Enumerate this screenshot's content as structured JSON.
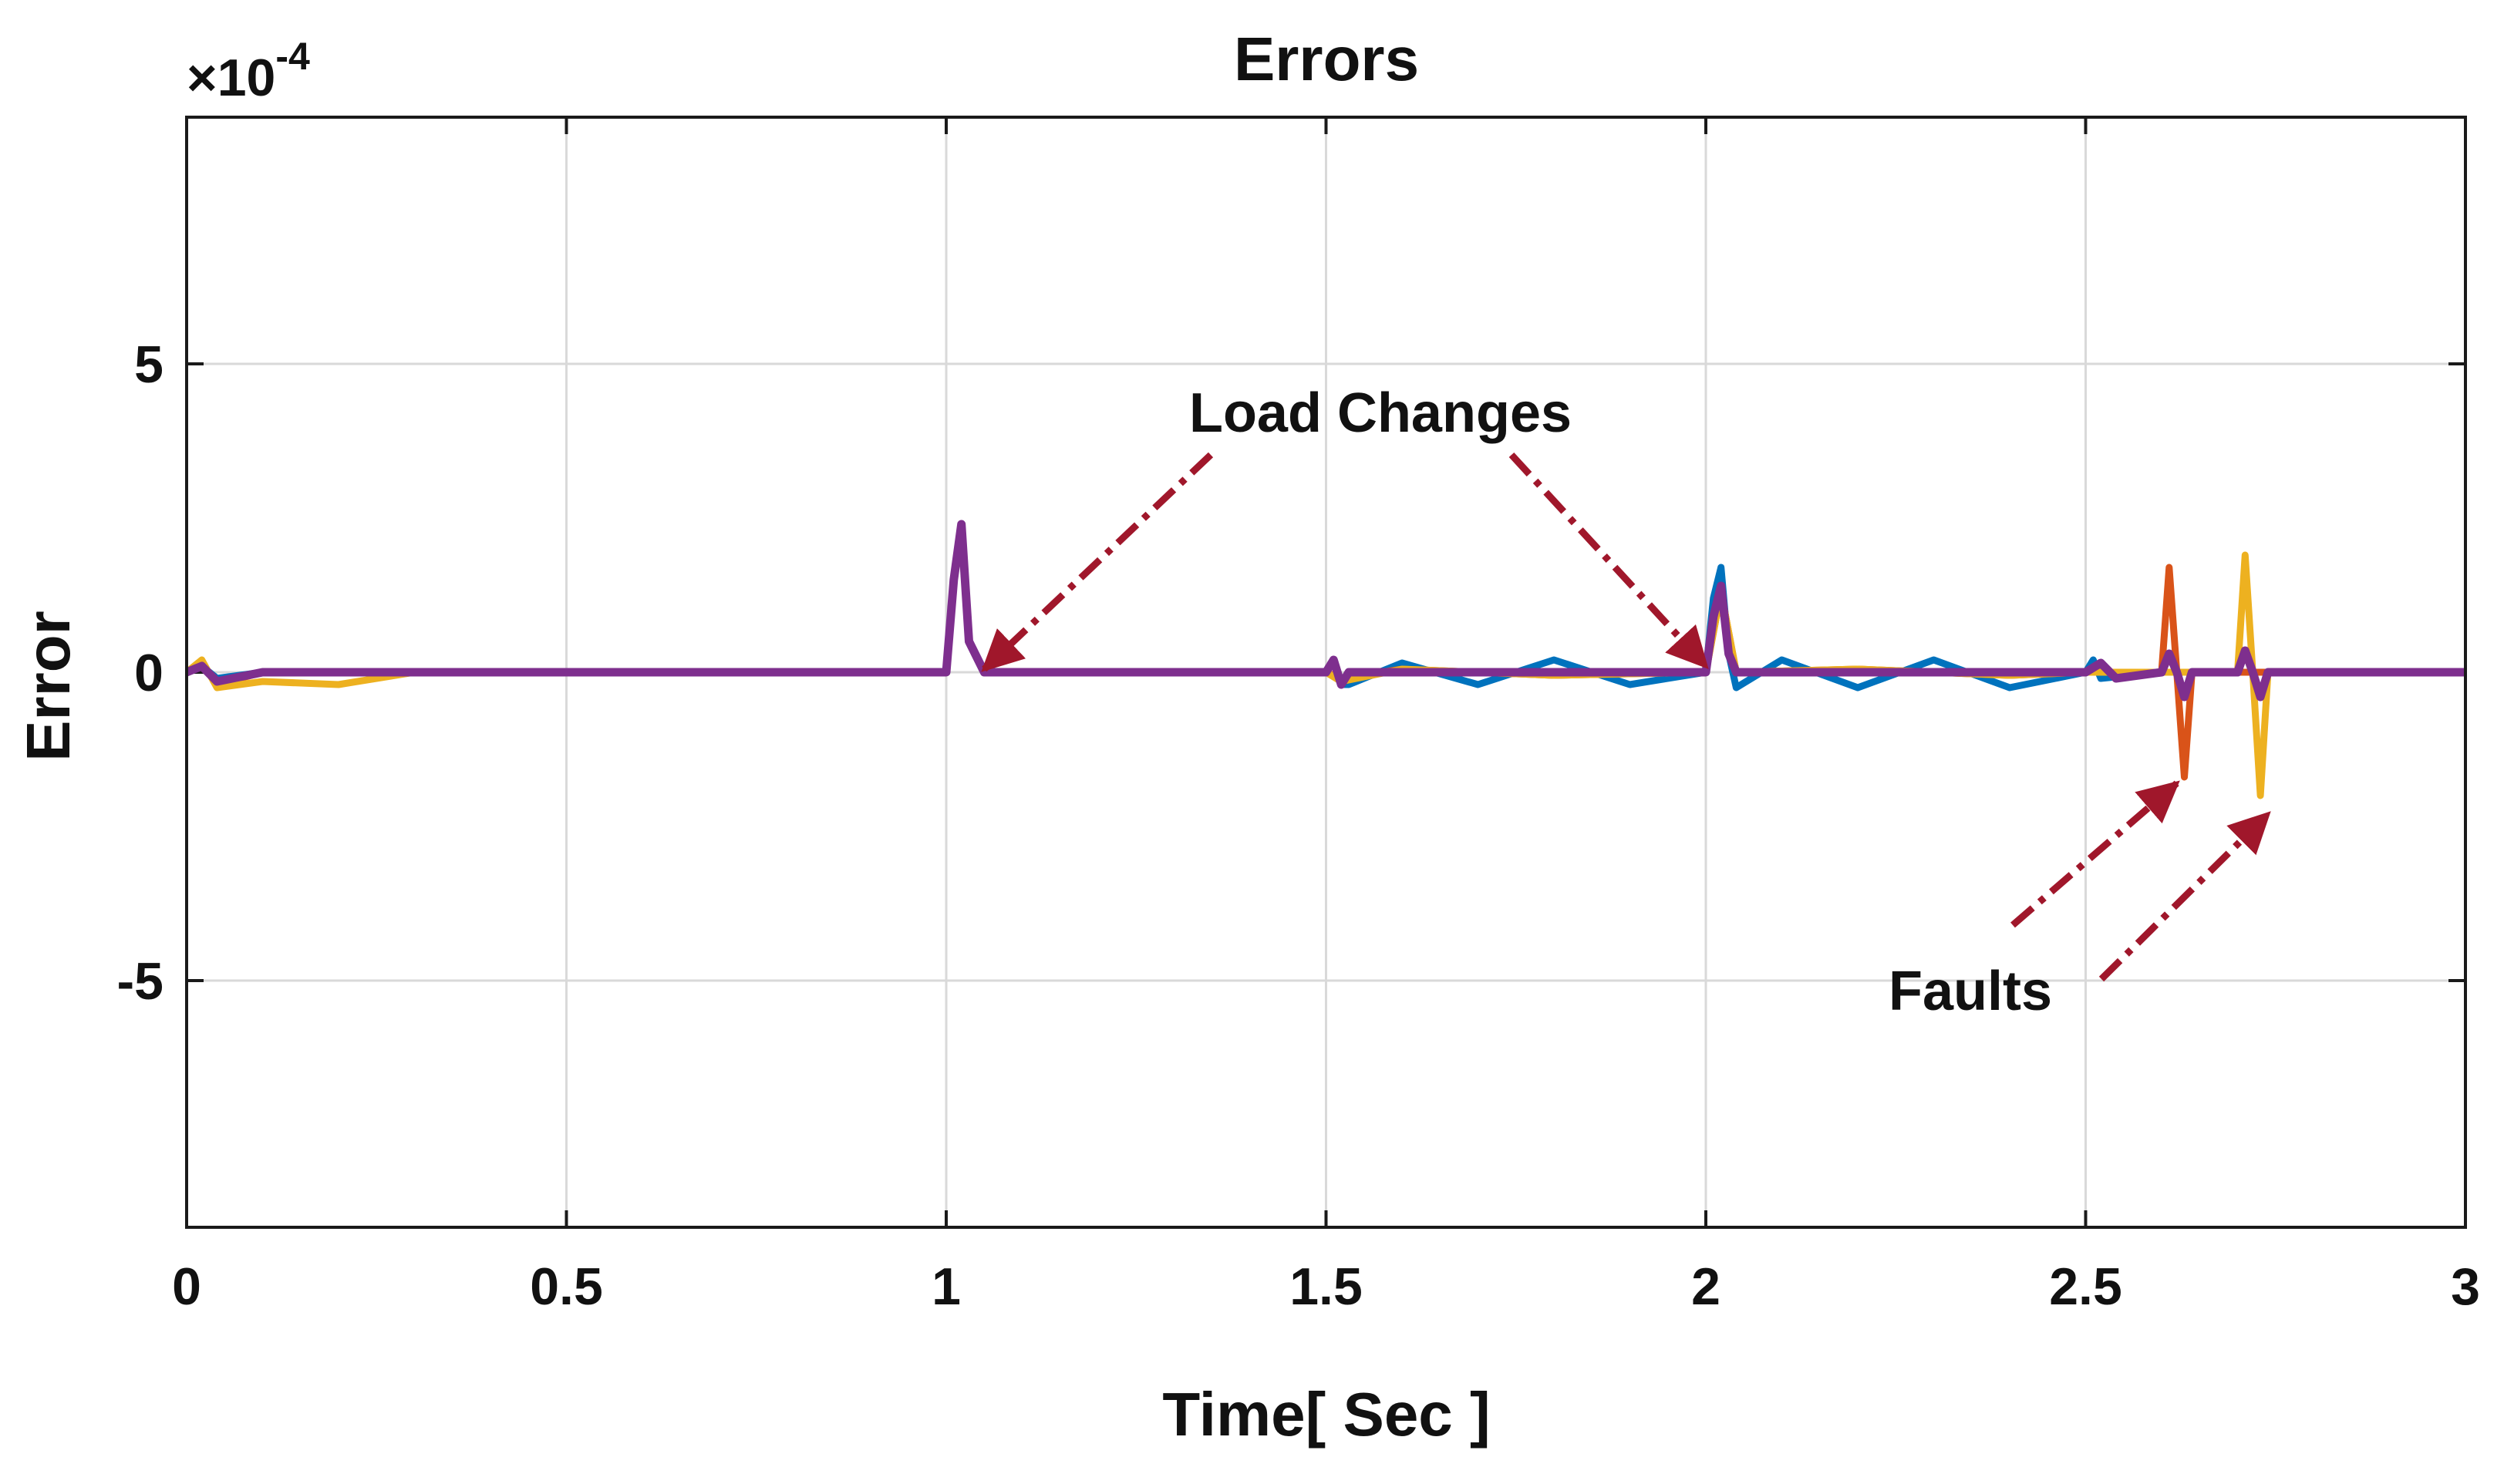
{
  "chart_data": {
    "type": "line",
    "title": "Errors",
    "xlabel": "Time[ Sec ]",
    "ylabel": "Error",
    "y_exponent_label": "×10",
    "y_exponent_power": "-4",
    "xlim": [
      0,
      3
    ],
    "ylim": [
      -9,
      9
    ],
    "x_ticks": [
      0,
      0.5,
      1,
      1.5,
      2,
      2.5,
      3
    ],
    "x_tick_labels": [
      "0",
      "0.5",
      "1",
      "1.5",
      "2",
      "2.5",
      "3"
    ],
    "y_ticks": [
      -5,
      0,
      5
    ],
    "y_tick_labels": [
      "-5",
      "0",
      "5"
    ],
    "grid": true,
    "legend": "none",
    "series": [
      {
        "color": "#0072BD",
        "x": [
          0,
          0.02,
          0.04,
          0.1,
          0.3,
          0.6,
          1.0,
          1.01,
          1.02,
          1.03,
          1.05,
          1.2,
          1.5,
          1.51,
          1.52,
          1.53,
          1.6,
          1.7,
          1.8,
          1.9,
          2.0,
          2.01,
          2.02,
          2.03,
          2.04,
          2.1,
          2.2,
          2.3,
          2.4,
          2.5,
          2.51,
          2.52,
          2.6,
          2.7,
          2.8,
          3.0
        ],
        "y": [
          0.0,
          0.1,
          -0.1,
          0.0,
          0.0,
          0.0,
          0.0,
          1.5,
          2.2,
          0.5,
          0.0,
          0.0,
          0.0,
          0.2,
          -0.2,
          -0.2,
          0.15,
          -0.2,
          0.2,
          -0.2,
          0.0,
          1.2,
          1.7,
          0.3,
          -0.25,
          0.2,
          -0.25,
          0.2,
          -0.25,
          0.0,
          0.2,
          -0.1,
          0.0,
          0.0,
          0.0,
          0.0
        ]
      },
      {
        "color": "#D95319",
        "x": [
          0,
          0.02,
          0.04,
          0.1,
          0.3,
          0.6,
          1.0,
          1.01,
          1.02,
          1.03,
          1.05,
          1.2,
          1.5,
          1.52,
          1.6,
          1.8,
          2.0,
          2.02,
          2.04,
          2.2,
          2.4,
          2.5,
          2.6,
          2.61,
          2.62,
          2.63,
          2.64,
          2.65,
          2.7,
          2.8,
          3.0
        ],
        "y": [
          0.0,
          0.15,
          -0.2,
          0.0,
          0.0,
          0.0,
          0.0,
          1.5,
          2.2,
          0.5,
          0.0,
          0.0,
          0.0,
          -0.1,
          0.05,
          -0.05,
          0.0,
          1.3,
          0.0,
          0.05,
          -0.05,
          0.0,
          0.0,
          1.7,
          0.0,
          -1.7,
          0.0,
          0.0,
          0.0,
          0.0,
          0.0
        ]
      },
      {
        "color": "#EDB120",
        "x": [
          0,
          0.02,
          0.04,
          0.1,
          0.2,
          0.3,
          0.6,
          1.0,
          1.01,
          1.02,
          1.03,
          1.05,
          1.2,
          1.5,
          1.52,
          1.6,
          1.8,
          2.0,
          2.02,
          2.04,
          2.2,
          2.4,
          2.5,
          2.6,
          2.7,
          2.71,
          2.72,
          2.73,
          2.74,
          2.75,
          2.8,
          3.0
        ],
        "y": [
          0.0,
          0.2,
          -0.25,
          -0.15,
          -0.2,
          0.0,
          0.0,
          0.0,
          1.5,
          2.2,
          0.5,
          0.0,
          0.0,
          0.0,
          -0.15,
          0.05,
          -0.05,
          0.0,
          1.3,
          0.0,
          0.05,
          -0.05,
          0.0,
          0.0,
          0.0,
          1.9,
          0.0,
          -2.0,
          0.0,
          0.0,
          0.0,
          0.0
        ]
      },
      {
        "color": "#7E2F8E",
        "x": [
          0,
          0.02,
          0.04,
          0.1,
          0.3,
          0.6,
          1.0,
          1.01,
          1.02,
          1.03,
          1.05,
          1.2,
          1.5,
          1.51,
          1.52,
          1.53,
          1.6,
          1.8,
          2.0,
          2.01,
          2.02,
          2.03,
          2.04,
          2.2,
          2.4,
          2.5,
          2.52,
          2.54,
          2.6,
          2.61,
          2.62,
          2.63,
          2.64,
          2.7,
          2.71,
          2.72,
          2.73,
          2.74,
          2.8,
          3.0
        ],
        "y": [
          0.0,
          0.1,
          -0.15,
          0.0,
          0.0,
          0.0,
          0.0,
          1.5,
          2.4,
          0.5,
          0.0,
          0.0,
          0.0,
          0.2,
          -0.2,
          0.0,
          0.0,
          0.0,
          0.0,
          0.9,
          1.4,
          0.3,
          0.0,
          0.0,
          0.0,
          0.0,
          0.15,
          -0.1,
          0.0,
          0.3,
          0.0,
          -0.4,
          0.0,
          0.0,
          0.35,
          0.0,
          -0.4,
          0.0,
          0.0,
          0.0
        ]
      }
    ],
    "annotations": [
      {
        "text": "Load Changes",
        "arrow_targets": [
          {
            "x": 1.05,
            "y": 0.05
          },
          {
            "x": 2.0,
            "y": 0.1
          }
        ]
      },
      {
        "text": "Faults",
        "arrow_targets": [
          {
            "x": 2.62,
            "y": -1.8
          },
          {
            "x": 2.74,
            "y": -2.3
          }
        ]
      }
    ],
    "annotation_color": "#A0172B"
  }
}
